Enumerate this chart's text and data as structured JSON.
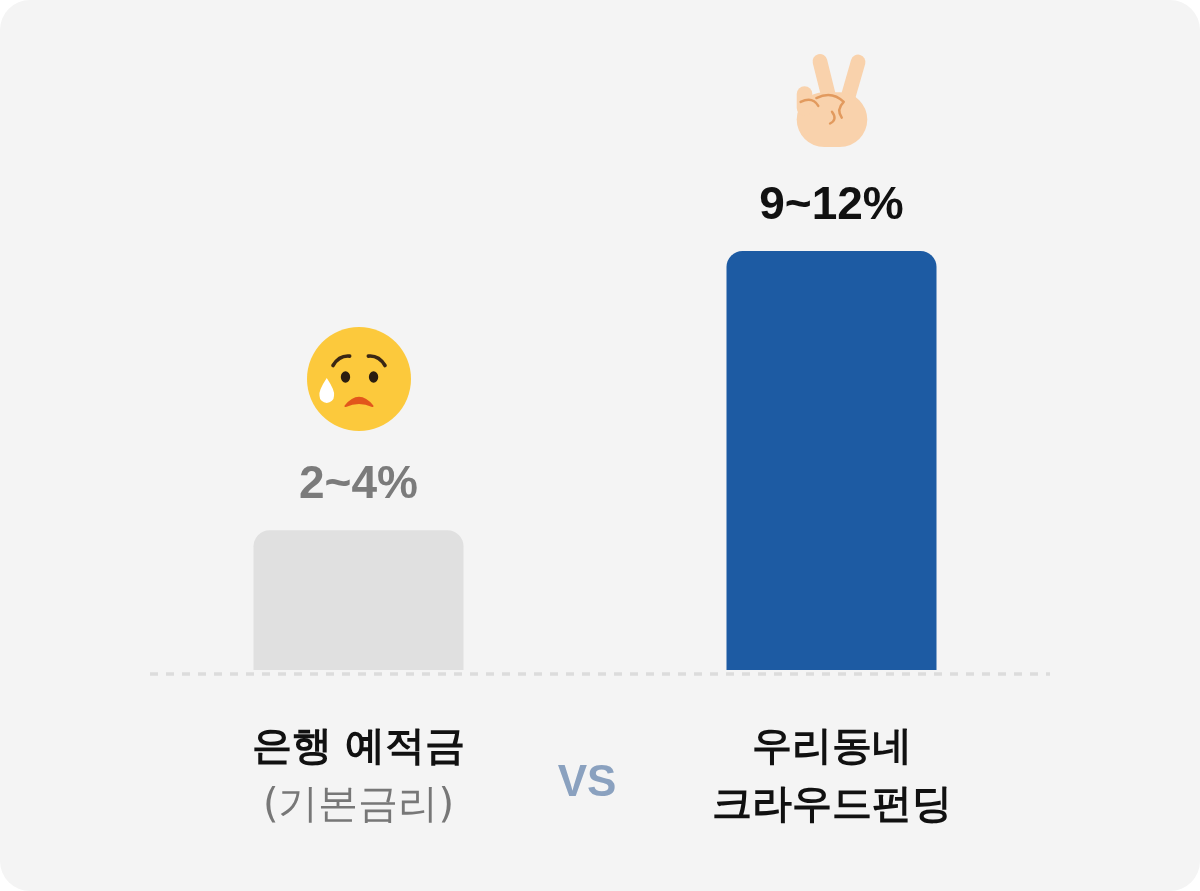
{
  "chart_data": {
    "type": "bar",
    "categories": [
      "은행 예적금 (기본금리)",
      "우리동네 크라우드펀딩"
    ],
    "values": [
      4,
      12
    ],
    "colors": [
      "#e0e0e0",
      "#1d5ba3"
    ],
    "ylim": [
      0,
      12
    ],
    "tick_labels": "x",
    "value_labels": [
      "2~4%",
      "9~12%"
    ],
    "annotations": [
      "VS"
    ]
  }
}
